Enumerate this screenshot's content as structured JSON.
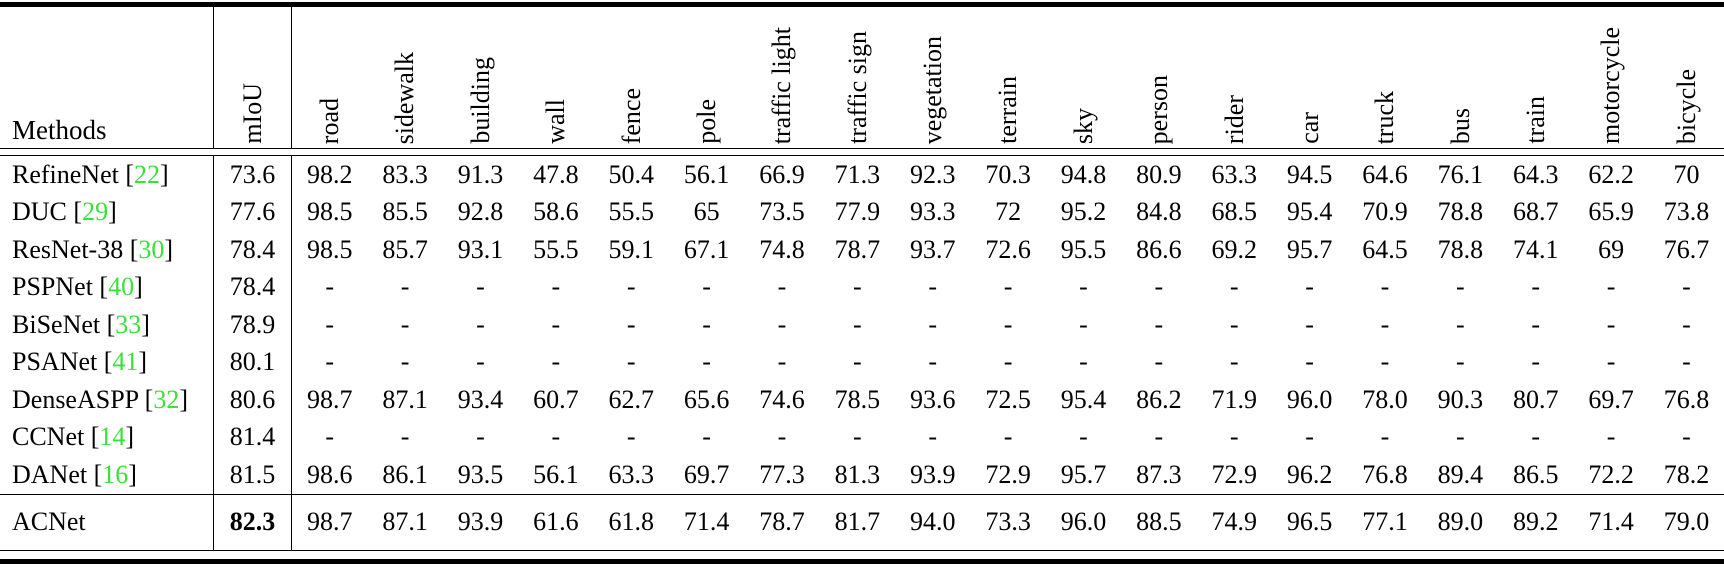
{
  "table": {
    "methods_header": "Methods",
    "miou_header": "mIoU",
    "class_headers": [
      "road",
      "sidewalk",
      "building",
      "wall",
      "fence",
      "pole",
      "traffic light",
      "traffic sign",
      "vegetation",
      "terrain",
      "sky",
      "person",
      "rider",
      "car",
      "truck",
      "bus",
      "train",
      "motorcycle",
      "bicycle"
    ],
    "rows": [
      {
        "method": "RefineNet",
        "cite": "22",
        "miou": "73.6",
        "miou_bold": false,
        "last": false,
        "values": [
          "98.2",
          "83.3",
          "91.3",
          "47.8",
          "50.4",
          "56.1",
          "66.9",
          "71.3",
          "92.3",
          "70.3",
          "94.8",
          "80.9",
          "63.3",
          "94.5",
          "64.6",
          "76.1",
          "64.3",
          "62.2",
          "70"
        ]
      },
      {
        "method": "DUC",
        "cite": "29",
        "miou": "77.6",
        "miou_bold": false,
        "last": false,
        "values": [
          "98.5",
          "85.5",
          "92.8",
          "58.6",
          "55.5",
          "65",
          "73.5",
          "77.9",
          "93.3",
          "72",
          "95.2",
          "84.8",
          "68.5",
          "95.4",
          "70.9",
          "78.8",
          "68.7",
          "65.9",
          "73.8"
        ]
      },
      {
        "method": "ResNet-38",
        "cite": "30",
        "miou": "78.4",
        "miou_bold": false,
        "last": false,
        "values": [
          "98.5",
          "85.7",
          "93.1",
          "55.5",
          "59.1",
          "67.1",
          "74.8",
          "78.7",
          "93.7",
          "72.6",
          "95.5",
          "86.6",
          "69.2",
          "95.7",
          "64.5",
          "78.8",
          "74.1",
          "69",
          "76.7"
        ]
      },
      {
        "method": "PSPNet",
        "cite": "40",
        "miou": "78.4",
        "miou_bold": false,
        "last": false,
        "values": [
          "-",
          "-",
          "-",
          "-",
          "-",
          "-",
          "-",
          "-",
          "-",
          "-",
          "-",
          "-",
          "-",
          "-",
          "-",
          "-",
          "-",
          "-",
          "-"
        ]
      },
      {
        "method": "BiSeNet",
        "cite": "33",
        "miou": "78.9",
        "miou_bold": false,
        "last": false,
        "values": [
          "-",
          "-",
          "-",
          "-",
          "-",
          "-",
          "-",
          "-",
          "-",
          "-",
          "-",
          "-",
          "-",
          "-",
          "-",
          "-",
          "-",
          "-",
          "-"
        ]
      },
      {
        "method": "PSANet",
        "cite": "41",
        "miou": "80.1",
        "miou_bold": false,
        "last": false,
        "values": [
          "-",
          "-",
          "-",
          "-",
          "-",
          "-",
          "-",
          "-",
          "-",
          "-",
          "-",
          "-",
          "-",
          "-",
          "-",
          "-",
          "-",
          "-",
          "-"
        ]
      },
      {
        "method": "DenseASPP",
        "cite": "32",
        "miou": "80.6",
        "miou_bold": false,
        "last": false,
        "values": [
          "98.7",
          "87.1",
          "93.4",
          "60.7",
          "62.7",
          "65.6",
          "74.6",
          "78.5",
          "93.6",
          "72.5",
          "95.4",
          "86.2",
          "71.9",
          "96.0",
          "78.0",
          "90.3",
          "80.7",
          "69.7",
          "76.8"
        ]
      },
      {
        "method": "CCNet",
        "cite": "14",
        "miou": "81.4",
        "miou_bold": false,
        "last": false,
        "values": [
          "-",
          "-",
          "-",
          "-",
          "-",
          "-",
          "-",
          "-",
          "-",
          "-",
          "-",
          "-",
          "-",
          "-",
          "-",
          "-",
          "-",
          "-",
          "-"
        ]
      },
      {
        "method": "DANet",
        "cite": "16",
        "miou": "81.5",
        "miou_bold": false,
        "last": false,
        "values": [
          "98.6",
          "86.1",
          "93.5",
          "56.1",
          "63.3",
          "69.7",
          "77.3",
          "81.3",
          "93.9",
          "72.9",
          "95.7",
          "87.3",
          "72.9",
          "96.2",
          "76.8",
          "89.4",
          "86.5",
          "72.2",
          "78.2"
        ]
      },
      {
        "method": "ACNet",
        "cite": null,
        "miou": "82.3",
        "miou_bold": true,
        "last": true,
        "values": [
          "98.7",
          "87.1",
          "93.9",
          "61.6",
          "61.8",
          "71.4",
          "78.7",
          "81.7",
          "94.0",
          "73.3",
          "96.0",
          "88.5",
          "74.9",
          "96.5",
          "77.1",
          "89.0",
          "89.2",
          "71.4",
          "79.0"
        ]
      }
    ],
    "colors": {
      "citation_green": "#3ce03c"
    }
  }
}
